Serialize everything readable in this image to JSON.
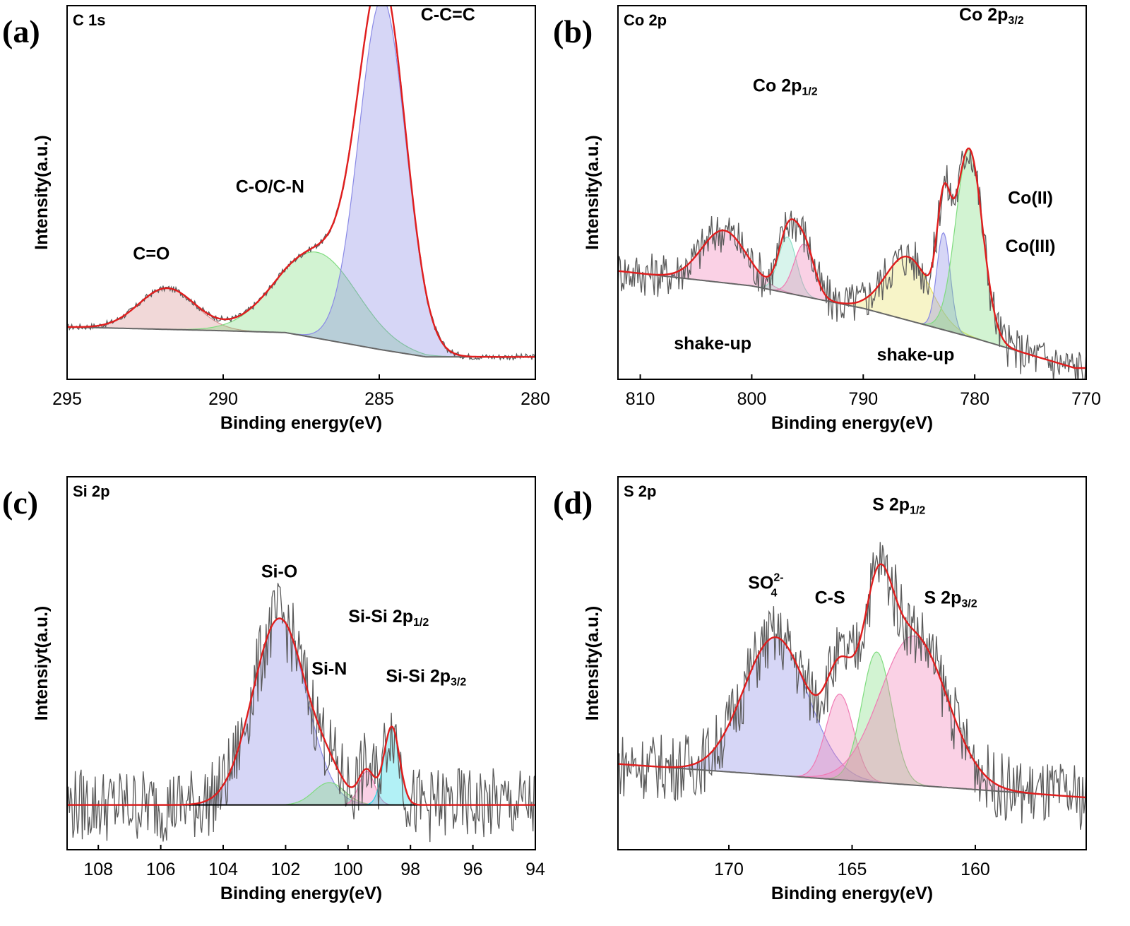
{
  "colors": {
    "envelope": "#e01e1e",
    "raw": "#5a5a5a",
    "baseline": "#666666",
    "peak_blue": "#8a8ae6",
    "peak_green": "#7fdc7f",
    "peak_red": "#d89090",
    "peak_pink": "#f07ab4",
    "peak_yellow": "#e8e060",
    "peak_cyan": "#22d8e6",
    "peak_teal": "#8ee0c8"
  },
  "chart_data": [
    {
      "type": "line",
      "panel_label": "(a)",
      "title": "C 1s",
      "xlabel": "Binding energy(eV)",
      "ylabel": "Intensity(a.u.)",
      "xlim": [
        295,
        280
      ],
      "ylim": [
        0,
        100
      ],
      "xticks": [
        295,
        290,
        285,
        280
      ],
      "xtick_labels": [
        "295",
        "290",
        "285",
        "280"
      ],
      "baseline": {
        "x": [
          295,
          290,
          288,
          285,
          283.5,
          282,
          280
        ],
        "y": [
          14,
          13,
          12.5,
          8,
          6,
          6,
          6
        ]
      },
      "noise_level": 0.8,
      "peaks": [
        {
          "name": "C=O",
          "center": 291.8,
          "height": 11,
          "width": 0.9,
          "color": "peak_red"
        },
        {
          "name": "C-O/C-N",
          "center": 287.0,
          "height": 23,
          "width": 1.3,
          "color": "peak_green"
        },
        {
          "name": "C-C=C",
          "center": 284.9,
          "height": 94,
          "width": 0.75,
          "color": "peak_blue"
        }
      ],
      "annotations": [
        {
          "text": "C=O",
          "x": 292.3,
          "y": 32
        },
        {
          "text": "C-O/C-N",
          "x": 288.5,
          "y": 50
        },
        {
          "text": "C-C=C",
          "x": 282.8,
          "y": 96
        }
      ]
    },
    {
      "type": "line",
      "panel_label": "(b)",
      "title": "Co 2p",
      "xlabel": "Binding energy(eV)",
      "ylabel": "Intensity(a.u.)",
      "xlim": [
        812,
        770
      ],
      "ylim": [
        0,
        100
      ],
      "xticks": [
        810,
        800,
        790,
        780,
        770
      ],
      "xtick_labels": [
        "810",
        "800",
        "790",
        "780",
        "770"
      ],
      "baseline": {
        "x": [
          812,
          800,
          790,
          780,
          771
        ],
        "y": [
          29,
          25,
          19,
          11,
          3
        ]
      },
      "noise_level": 6,
      "peaks": [
        {
          "name": "shake-up 2p1/2",
          "center": 802.5,
          "height": 14,
          "width": 2.0,
          "color": "peak_pink"
        },
        {
          "name": "Co 2p1/2 (III)",
          "center": 796.8,
          "height": 15,
          "width": 0.8,
          "color": "peak_teal"
        },
        {
          "name": "Co 2p1/2 (II)",
          "center": 795.3,
          "height": 14,
          "width": 0.9,
          "color": "peak_pink"
        },
        {
          "name": "shake-up 2p3/2",
          "center": 786.0,
          "height": 17,
          "width": 2.0,
          "color": "peak_yellow"
        },
        {
          "name": "Co 2p3/2 (III)",
          "center": 782.8,
          "height": 26,
          "width": 0.6,
          "color": "peak_blue"
        },
        {
          "name": "Co 2p3/2 (II)",
          "center": 780.5,
          "height": 50,
          "width": 1.2,
          "color": "peak_green"
        }
      ],
      "annotations": [
        {
          "text": "Co 2p",
          "sub": "1/2",
          "x": 797,
          "y": 77
        },
        {
          "text": "Co 2p",
          "sub": "3/2",
          "x": 778.5,
          "y": 96
        },
        {
          "text": "Co(II)",
          "x": 775,
          "y": 47
        },
        {
          "text": "Co(III)",
          "x": 775,
          "y": 34
        },
        {
          "text": "shake-up",
          "x": 803.5,
          "y": 8
        },
        {
          "text": "shake-up",
          "x": 785.3,
          "y": 5
        }
      ]
    },
    {
      "type": "line",
      "panel_label": "(c)",
      "title": "Si 2p",
      "xlabel": "Binding energy(eV)",
      "ylabel": "Intensiyt(a.u.)",
      "xlim": [
        109,
        94
      ],
      "ylim": [
        0,
        100
      ],
      "xticks": [
        108,
        106,
        104,
        102,
        100,
        98,
        96,
        94
      ],
      "xtick_labels": [
        "108",
        "106",
        "104",
        "102",
        "100",
        "98",
        "96",
        "94"
      ],
      "baseline": {
        "x": [
          109,
          94
        ],
        "y": [
          12,
          12
        ]
      },
      "noise_level": 10,
      "peaks": [
        {
          "name": "Si-O",
          "center": 102.2,
          "height": 50,
          "width": 0.85,
          "color": "peak_blue"
        },
        {
          "name": "Si-N",
          "center": 100.6,
          "height": 6,
          "width": 0.5,
          "color": "peak_green"
        },
        {
          "name": "Si-Si 2p1/2",
          "center": 99.4,
          "height": 9,
          "width": 0.25,
          "color": "peak_pink"
        },
        {
          "name": "Si-Si 2p3/2",
          "center": 98.6,
          "height": 21,
          "width": 0.25,
          "color": "peak_cyan"
        }
      ],
      "annotations": [
        {
          "text": "Si-O",
          "x": 102.2,
          "y": 73
        },
        {
          "text": "Si-N",
          "x": 100.6,
          "y": 47
        },
        {
          "text": "Si-Si 2p",
          "sub": "1/2",
          "x": 98.7,
          "y": 61
        },
        {
          "text": "Si-Si 2p",
          "sub": "3/2",
          "x": 97.5,
          "y": 45
        }
      ]
    },
    {
      "type": "line",
      "panel_label": "(d)",
      "title": "S 2p",
      "xlabel": "Binding energy(eV)",
      "ylabel": "Intensity(a.u.)",
      "xlim": [
        174.5,
        155.5
      ],
      "ylim": [
        0,
        100
      ],
      "xticks": [
        170,
        165,
        160
      ],
      "xtick_labels": [
        "170",
        "165",
        "160"
      ],
      "baseline": {
        "x": [
          174.5,
          155.5
        ],
        "y": [
          23,
          14
        ]
      },
      "noise_level": 9,
      "peaks": [
        {
          "name": "SO4 2-",
          "center": 168.1,
          "height": 37,
          "width": 1.3,
          "color": "peak_blue"
        },
        {
          "name": "C-S",
          "center": 165.5,
          "height": 23,
          "width": 0.55,
          "color": "peak_pink"
        },
        {
          "name": "S 2p1/2",
          "center": 164.0,
          "height": 35,
          "width": 0.6,
          "color": "peak_green"
        },
        {
          "name": "S 2p3/2",
          "center": 162.5,
          "height": 40,
          "width": 1.35,
          "color": "peak_pink"
        }
      ],
      "annotations": [
        {
          "text": "SO",
          "sup": "2-",
          "sub": "4",
          "x": 168.5,
          "y": 70
        },
        {
          "text": "C-S",
          "x": 165.9,
          "y": 66
        },
        {
          "text": "S 2p",
          "sub": "1/2",
          "x": 163.1,
          "y": 91
        },
        {
          "text": "S 2p",
          "sub": "3/2",
          "x": 161.0,
          "y": 66
        }
      ]
    }
  ]
}
